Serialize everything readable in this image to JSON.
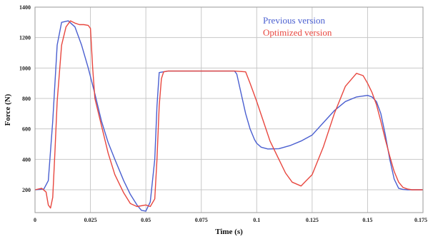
{
  "chart_data": {
    "type": "line",
    "xlabel": "Time (s)",
    "ylabel": "Force (N)",
    "xlim": [
      0,
      0.175
    ],
    "ylim": [
      50,
      1400
    ],
    "grid": true,
    "legend_position": "top-right",
    "x_ticks": [
      0,
      0.025,
      0.05,
      0.075,
      0.1,
      0.125,
      0.15,
      0.175
    ],
    "x_tick_labels": [
      "0",
      "0.025",
      "0.05",
      "0.075",
      "0.1",
      "0.125",
      "0.15",
      "0.175"
    ],
    "y_ticks": [
      200,
      400,
      600,
      800,
      1000,
      1200,
      1400
    ],
    "y_tick_labels": [
      "200",
      "400",
      "600",
      "800",
      "1000",
      "1200",
      "1400"
    ],
    "series": [
      {
        "name": "Previous version",
        "color": "#4a5fd0",
        "x": [
          0,
          0.004,
          0.006,
          0.008,
          0.01,
          0.012,
          0.015,
          0.018,
          0.021,
          0.024,
          0.027,
          0.03,
          0.033,
          0.036,
          0.04,
          0.043,
          0.046,
          0.048,
          0.05,
          0.052,
          0.054,
          0.055,
          0.056,
          0.06,
          0.07,
          0.08,
          0.09,
          0.091,
          0.093,
          0.095,
          0.097,
          0.099,
          0.1,
          0.102,
          0.105,
          0.11,
          0.115,
          0.12,
          0.125,
          0.13,
          0.135,
          0.14,
          0.145,
          0.15,
          0.152,
          0.154,
          0.156,
          0.158,
          0.16,
          0.162,
          0.164,
          0.166,
          0.168,
          0.17,
          0.175
        ],
        "y": [
          200,
          205,
          260,
          650,
          1150,
          1300,
          1310,
          1270,
          1150,
          1000,
          830,
          650,
          510,
          400,
          260,
          170,
          100,
          65,
          60,
          120,
          400,
          750,
          970,
          980,
          980,
          980,
          980,
          960,
          830,
          700,
          600,
          530,
          505,
          480,
          468,
          470,
          490,
          520,
          560,
          640,
          720,
          780,
          810,
          820,
          810,
          780,
          700,
          560,
          400,
          270,
          210,
          202,
          200,
          200,
          200
        ]
      },
      {
        "name": "Optimized version",
        "color": "#e8473f",
        "x": [
          0,
          0.003,
          0.005,
          0.006,
          0.007,
          0.008,
          0.009,
          0.01,
          0.012,
          0.014,
          0.016,
          0.018,
          0.02,
          0.022,
          0.024,
          0.025,
          0.026,
          0.027,
          0.03,
          0.033,
          0.036,
          0.04,
          0.043,
          0.046,
          0.05,
          0.052,
          0.054,
          0.055,
          0.056,
          0.057,
          0.058,
          0.06,
          0.07,
          0.08,
          0.09,
          0.095,
          0.097,
          0.1,
          0.103,
          0.106,
          0.11,
          0.113,
          0.116,
          0.12,
          0.125,
          0.13,
          0.135,
          0.14,
          0.145,
          0.148,
          0.15,
          0.152,
          0.154,
          0.156,
          0.158,
          0.16,
          0.162,
          0.164,
          0.166,
          0.168,
          0.17,
          0.175
        ],
        "y": [
          200,
          210,
          185,
          100,
          80,
          150,
          450,
          780,
          1150,
          1270,
          1310,
          1295,
          1285,
          1285,
          1280,
          1260,
          1000,
          800,
          620,
          440,
          300,
          180,
          110,
          90,
          100,
          90,
          140,
          400,
          750,
          930,
          975,
          980,
          980,
          980,
          980,
          975,
          900,
          780,
          650,
          520,
          400,
          310,
          250,
          225,
          300,
          480,
          700,
          880,
          965,
          950,
          900,
          840,
          760,
          650,
          530,
          420,
          320,
          250,
          215,
          205,
          200,
          200
        ]
      }
    ]
  }
}
